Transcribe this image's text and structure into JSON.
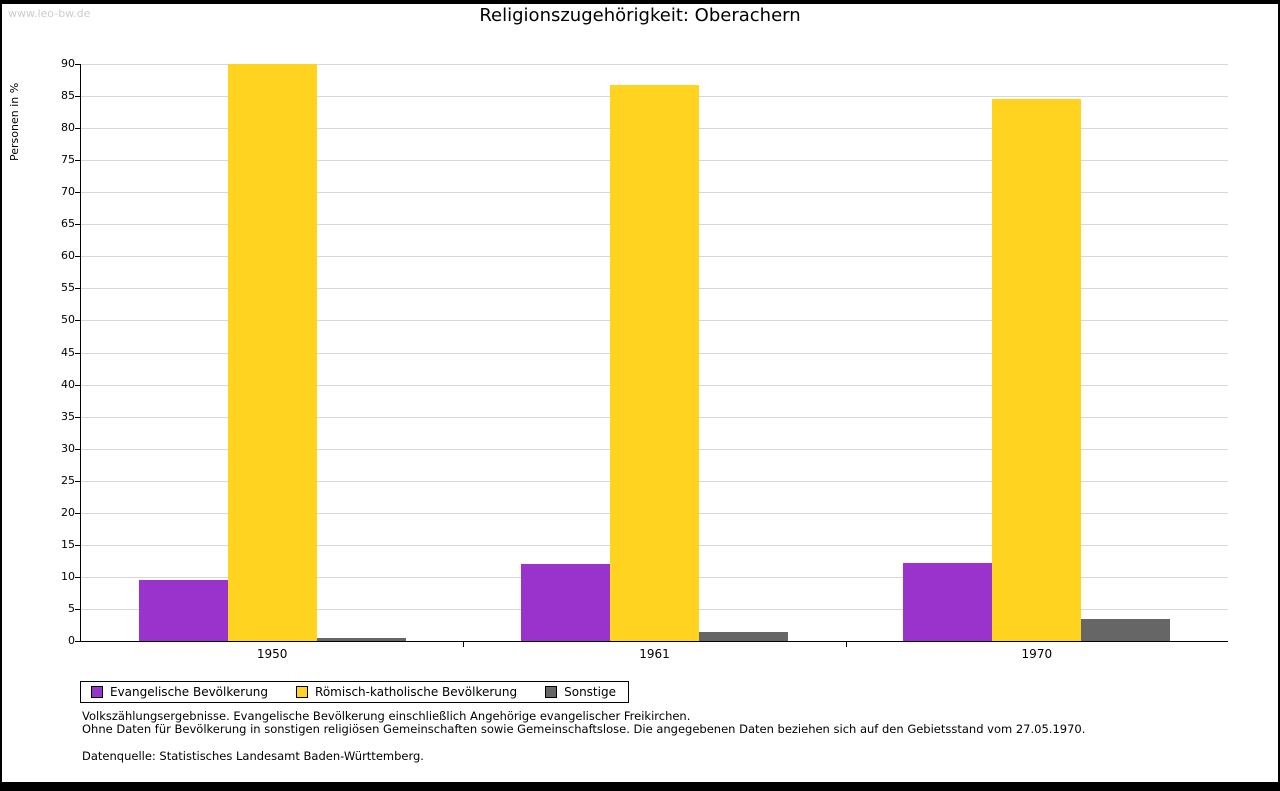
{
  "watermark": "www.leo-bw.de",
  "chart_data": {
    "type": "bar",
    "title": "Religionszugehörigkeit: Oberachern",
    "ylabel": "Personen in %",
    "xlabel": "",
    "categories": [
      "1950",
      "1961",
      "1970"
    ],
    "series": [
      {
        "name": "Evangelische Bevölkerung",
        "color": "#9933CC",
        "values": [
          9.5,
          12.0,
          12.2
        ]
      },
      {
        "name": "Römisch-katholische Bevölkerung",
        "color": "#FFD320",
        "values": [
          90.0,
          86.7,
          84.6
        ]
      },
      {
        "name": "Sonstige",
        "color": "#666666",
        "values": [
          0.4,
          1.4,
          3.5
        ]
      }
    ],
    "ylim": [
      0,
      90
    ],
    "ytick_step": 5,
    "grid": true,
    "legend_position": "bottom-left"
  },
  "footnotes": {
    "line1": "Volkszählungsergebnisse. Evangelische Bevölkerung einschließlich Angehörige evangelischer Freikirchen.",
    "line2": "Ohne Daten für Bevölkerung in sonstigen religiösen Gemeinschaften sowie Gemeinschaftslose. Die angegebenen Daten beziehen sich auf den Gebietsstand vom 27.05.1970.",
    "source": "Datenquelle: Statistisches Landesamt Baden-Württemberg."
  }
}
